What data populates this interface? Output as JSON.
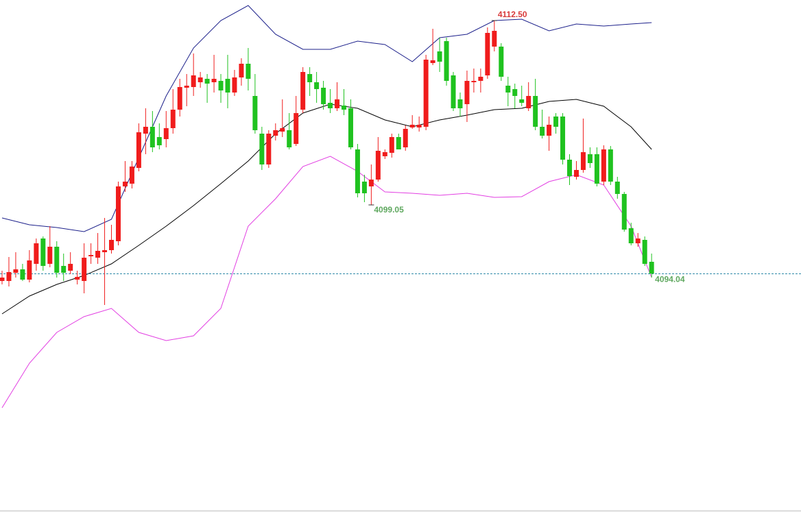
{
  "chart_data": {
    "type": "candlestick",
    "up_color": "#f01c1c",
    "down_color": "#1fc21f",
    "ylim": [
      4077,
      4114
    ],
    "open": [
      4093.5,
      4093.5,
      4094.1,
      4094.35,
      4093.6,
      4094.75,
      4096.6,
      4094.75,
      4096,
      4094.6,
      4094.25,
      4093.6,
      4093.5,
      4095.3,
      4095.2,
      4095.6,
      4095.75,
      4096.4,
      4100.4,
      4100.6,
      4101.75,
      4104.25,
      4104.75,
      4104,
      4103.85,
      4104.65,
      4106,
      4107.6,
      4107.65,
      4108,
      4108.25,
      4108,
      4108.1,
      4108.25,
      4107.25,
      4108.35,
      4109.35,
      4107,
      4104.25,
      4102,
      4104.1,
      4104.4,
      4104.5,
      4103.5,
      4106,
      4108.6,
      4108,
      4107.6,
      4106.5,
      4106.1,
      4106.3,
      4106.1,
      4103.1,
      4100.75,
      4100.4,
      4100.9,
      4102.6,
      4102.85,
      4104,
      4103.25,
      4104.7,
      4104.7,
      4104.75,
      4109.4,
      4110.25,
      4111,
      4108.5,
      4106.75,
      4106.4,
      4108,
      4108.1,
      4108.5,
      4110.6,
      4110.6,
      4107.75,
      4107.5,
      4106.75,
      4106.1,
      4107,
      4104.75,
      4104.1,
      4105.5,
      4105.5,
      4102.35,
      4101.1,
      4101.6,
      4102.75,
      4102.75,
      4100.75,
      4103.1,
      4100.75,
      4099.85,
      4097.35,
      4096.25,
      4096.5,
      4094.9
    ],
    "high": [
      4094.25,
      4095.25,
      4095.6,
      4094.75,
      4095.75,
      4096.6,
      4096.75,
      4097.5,
      4096.4,
      4095.5,
      4095.6,
      4094.25,
      4096.25,
      4096.25,
      4097,
      4098.1,
      4097.6,
      4100.75,
      4102.25,
      4102.25,
      4105,
      4106.1,
      4105.9,
      4105,
      4105.9,
      4107.5,
      4108.25,
      4108.6,
      4110.1,
      4108.75,
      4108.6,
      4110,
      4108.6,
      4110,
      4108.9,
      4109.75,
      4110.5,
      4108.6,
      4104.75,
      4104.5,
      4105,
      4106.75,
      4105.75,
      4107,
      4109.1,
      4109.1,
      4108.75,
      4108.1,
      4107.5,
      4108,
      4107.5,
      4106.75,
      4103.5,
      4101.25,
      4102,
      4104,
      4103.1,
      4104.25,
      4104.25,
      4104.85,
      4105.6,
      4105.5,
      4110,
      4111.9,
      4111.25,
      4111.25,
      4108.75,
      4107.25,
      4108.85,
      4109,
      4109,
      4112,
      4112.5,
      4110.85,
      4108.4,
      4107.9,
      4107.75,
      4108,
      4108.25,
      4106,
      4105.5,
      4105.75,
      4105.75,
      4102.75,
      4102.25,
      4105.35,
      4103.25,
      4103.25,
      4103.4,
      4103.35,
      4101.1,
      4100,
      4097.75,
      4097,
      4096.75,
      4095.5
    ],
    "low": [
      4093.25,
      4093.1,
      4093.75,
      4093.5,
      4093.4,
      4094.25,
      4094.25,
      4094.5,
      4093.75,
      4093.5,
      4094,
      4093.25,
      4092.6,
      4094.75,
      4094.75,
      4091.75,
      4095.5,
      4096.1,
      4100,
      4100.25,
      4101.5,
      4102.75,
      4102.9,
      4103.1,
      4103.25,
      4104.25,
      4105.5,
      4106.25,
      4107,
      4107.6,
      4106.5,
      4107.25,
      4106.5,
      4106.1,
      4107,
      4107.75,
      4107.4,
      4104.25,
      4101.6,
      4101.75,
      4103.75,
      4104,
      4103.1,
      4103.35,
      4105.75,
      4107,
      4106.5,
      4106,
      4105.75,
      4105.9,
      4105.6,
      4103.1,
      4099.6,
      4099.25,
      4099.05,
      4100.75,
      4102.4,
      4102.5,
      4103.1,
      4103,
      4104.6,
      4104.4,
      4104.5,
      4109.25,
      4108.75,
      4107.75,
      4105.9,
      4105.5,
      4105.1,
      4107.25,
      4107.25,
      4108.25,
      4110.25,
      4108.1,
      4106.25,
      4106.1,
      4106.25,
      4105.9,
      4104.5,
      4103.9,
      4103,
      4104.25,
      4102,
      4100.5,
      4100.9,
      4101.4,
      4101.75,
      4100.4,
      4100.5,
      4100.5,
      4099.5,
      4097.1,
      4096.1,
      4096,
      4094.6,
      4093.75
    ],
    "close": [
      4093.75,
      4094.15,
      4094.35,
      4093.6,
      4095,
      4096.25,
      4094.6,
      4096,
      4094.1,
      4094.1,
      4094.75,
      4093.8,
      4095.2,
      4095.4,
      4095.7,
      4095.75,
      4096.5,
      4100.4,
      4100.75,
      4101.85,
      4104.35,
      4104.75,
      4103.25,
      4103.4,
      4104.65,
      4106,
      4107.65,
      4107.75,
      4108.5,
      4108.35,
      4107.9,
      4108.25,
      4107.4,
      4107.25,
      4108.35,
      4109.35,
      4108.25,
      4104.5,
      4102,
      4104.25,
      4104.5,
      4104.65,
      4103.25,
      4105.75,
      4108.75,
      4108,
      4107.5,
      4106.4,
      4106.1,
      4106.75,
      4106,
      4103.25,
      4099.9,
      4099.9,
      4100.9,
      4103,
      4102.9,
      4104,
      4103.1,
      4104.6,
      4104.9,
      4104.9,
      4109.65,
      4109.6,
      4109.5,
      4108.1,
      4106.1,
      4106.1,
      4108.1,
      4108.1,
      4108.4,
      4111.6,
      4111.75,
      4108.4,
      4107.25,
      4107,
      4106.5,
      4107,
      4104.75,
      4104.1,
      4104.9,
      4104.75,
      4102.35,
      4101.15,
      4101.6,
      4102.9,
      4102.1,
      4100.6,
      4103.1,
      4100.75,
      4099.85,
      4097.25,
      4096.25,
      4096.6,
      4094.75,
      4094.04
    ],
    "bands": [
      {
        "color": "#1b1f8a",
        "x": [
          0,
          4,
          8,
          12,
          16,
          20,
          24,
          28,
          32,
          36,
          40,
          44,
          48,
          52,
          56,
          60,
          64,
          68,
          72,
          76,
          80,
          84,
          88,
          92,
          95
        ],
        "values": [
          4098.1,
          4097.6,
          4097.4,
          4097.1,
          4098,
          4102.5,
          4107,
          4110.5,
          4112.5,
          4113.6,
          4111.5,
          4110.4,
          4110.4,
          4111,
          4110.75,
          4109.5,
          4111.25,
          4111.5,
          4112.5,
          4112.6,
          4111.75,
          4112.25,
          4112.1,
          4112.25,
          4112.35
        ]
      },
      {
        "color": "#000000",
        "x": [
          0,
          4,
          8,
          12,
          16,
          20,
          24,
          28,
          32,
          36,
          40,
          44,
          48,
          52,
          56,
          60,
          64,
          68,
          72,
          76,
          80,
          84,
          88,
          92,
          95
        ],
        "values": [
          4091.1,
          4092.4,
          4093.25,
          4093.9,
          4094.75,
          4096.1,
          4097.5,
          4099,
          4100.6,
          4102.25,
          4104.25,
          4105.75,
          4106.4,
          4106.1,
          4105.25,
          4104.75,
          4105.25,
          4105.6,
          4106,
          4106.1,
          4106.6,
          4106.75,
          4106.25,
          4104.75,
          4103.1
        ]
      },
      {
        "color": "#e23ee2",
        "x": [
          0,
          4,
          8,
          12,
          16,
          20,
          24,
          28,
          32,
          36,
          40,
          44,
          48,
          52,
          56,
          60,
          64,
          68,
          72,
          76,
          80,
          84,
          88,
          92,
          95
        ],
        "values": [
          4084.25,
          4087.5,
          4089.75,
          4090.9,
          4091.5,
          4089.75,
          4089.15,
          4089.5,
          4091.5,
          4097.5,
          4099.5,
          4101.85,
          4102.6,
          4101.5,
          4100,
          4099.9,
          4099.75,
          4099.9,
          4099.6,
          4099.65,
          4100.75,
          4101.25,
          4100.5,
          4097.5,
          4093.75
        ]
      }
    ],
    "high_label": {
      "index": 72,
      "value": 4112.5,
      "label": "4112.50",
      "color": "#d83a3a"
    },
    "low_label": {
      "index": 54,
      "value": 4099.05,
      "color": "#5fa85f"
    },
    "last_price": {
      "value": 4094.04,
      "color": "#5fa85f",
      "line_color": "#2e8aa8"
    }
  }
}
